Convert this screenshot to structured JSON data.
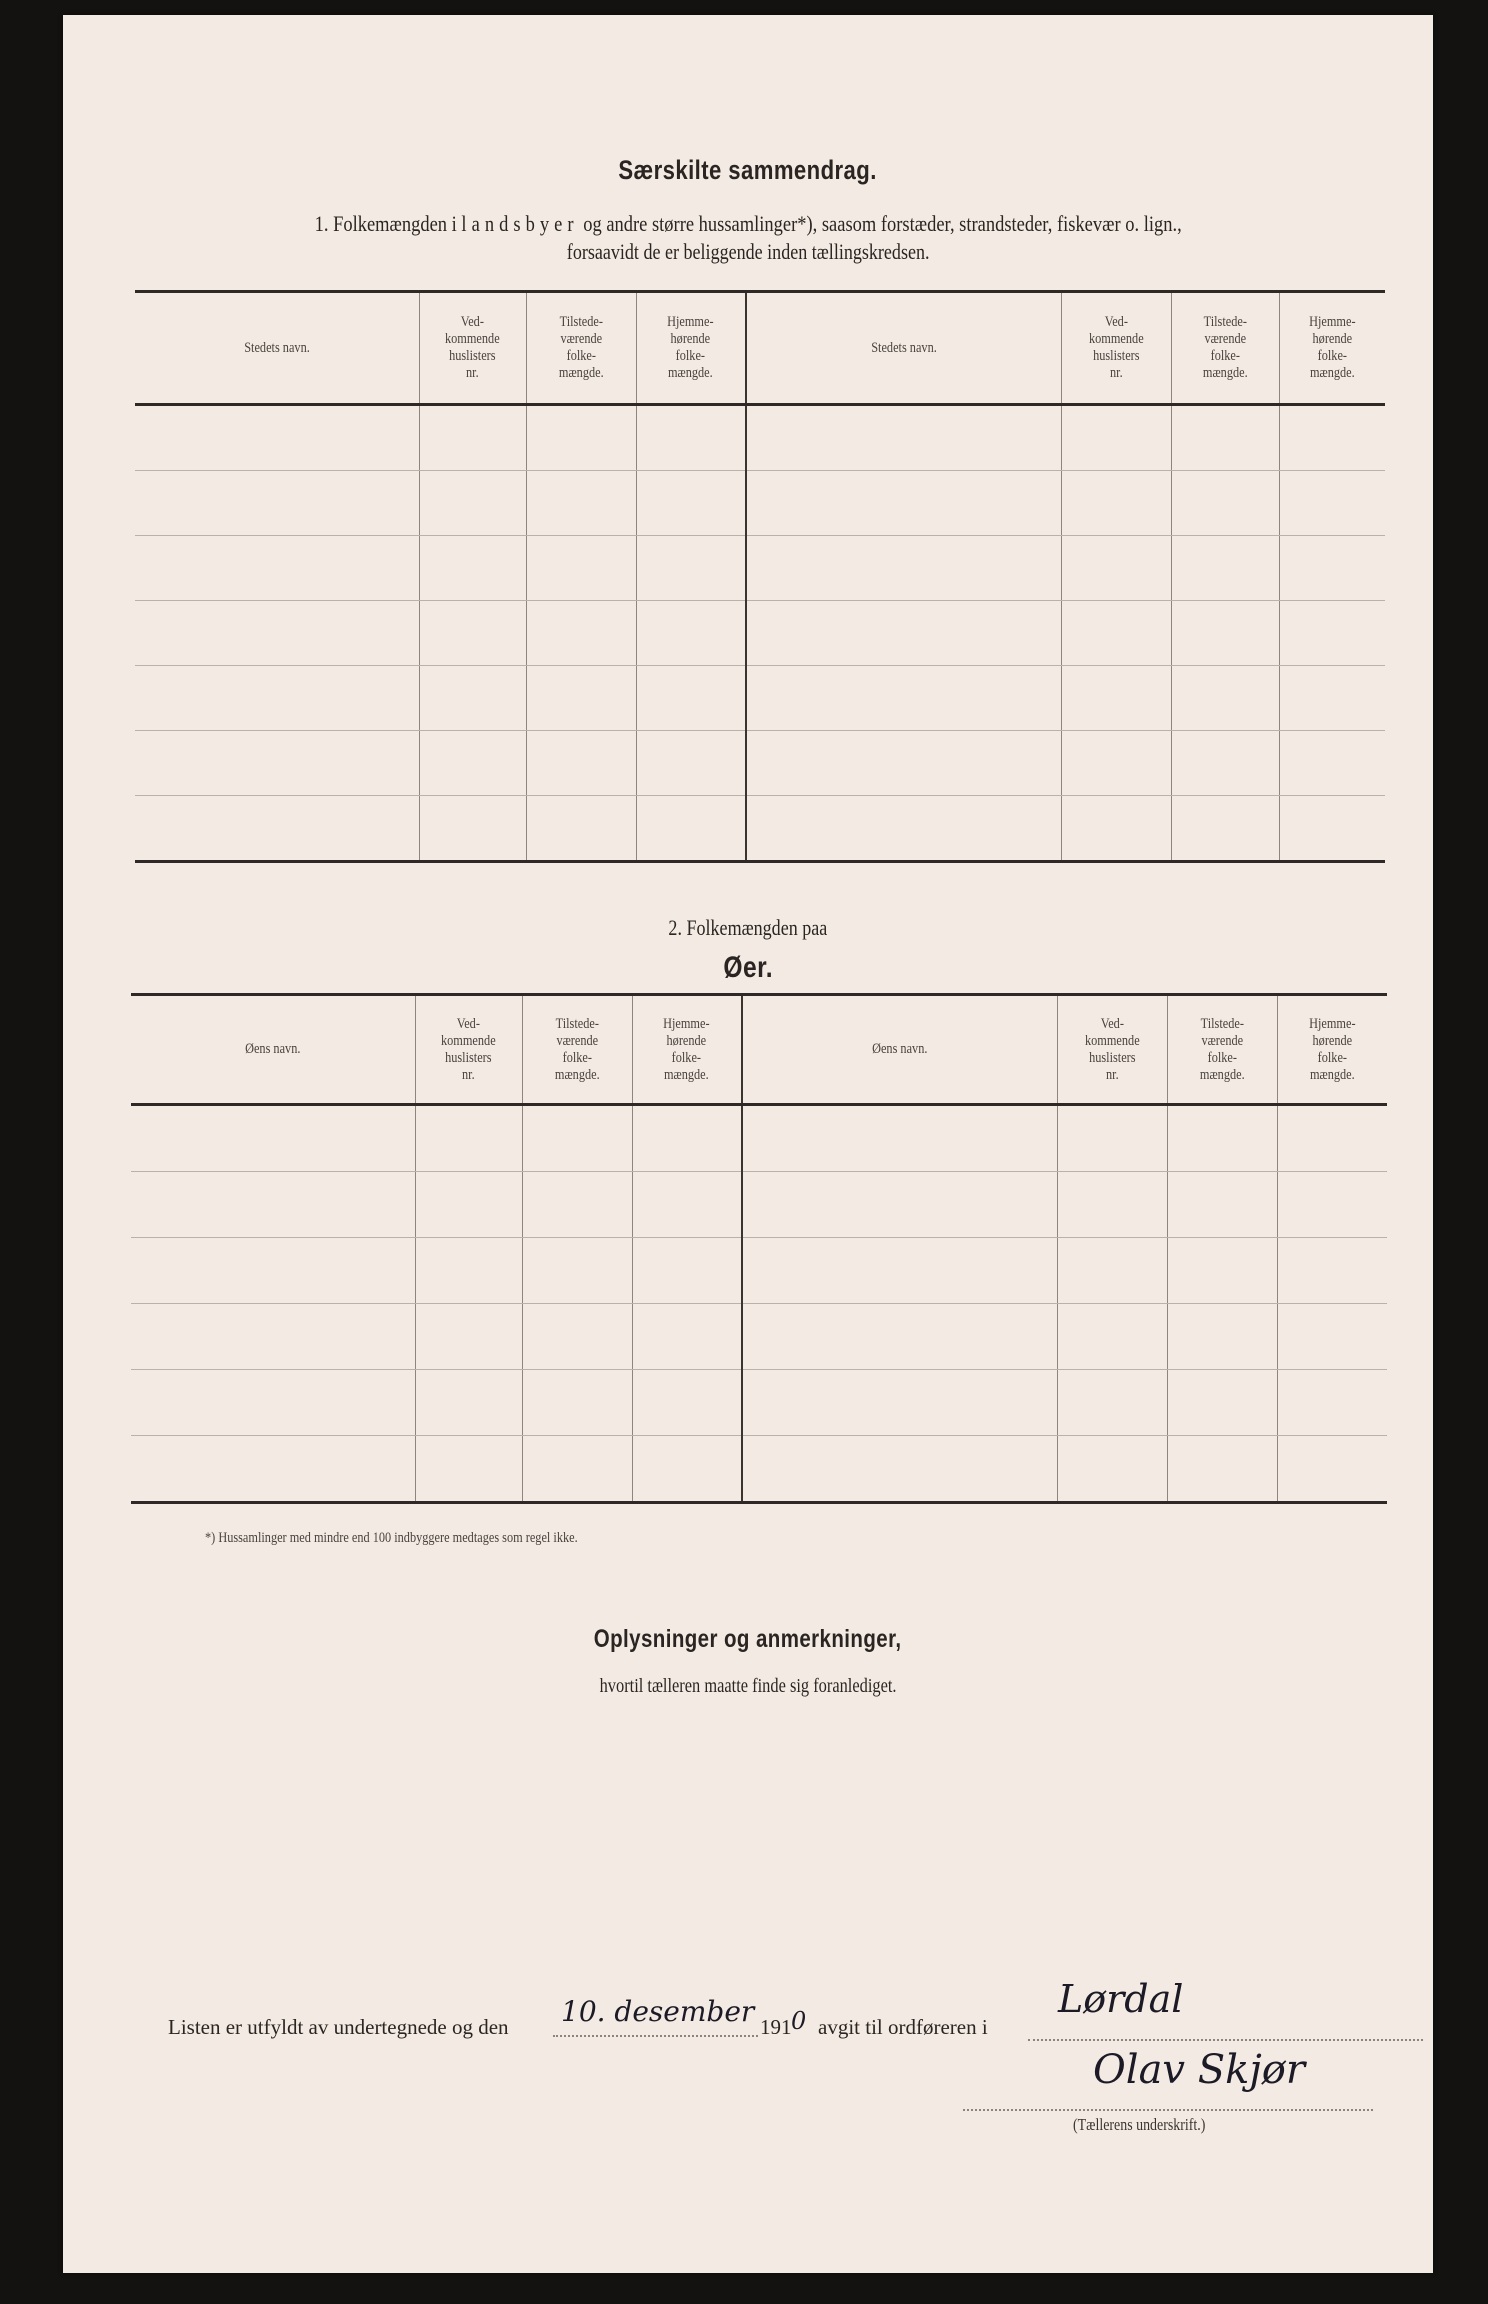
{
  "title": "Særskilte sammendrag.",
  "section1": {
    "heading_prefix": "1.  Folkemængden i",
    "heading_spaced": "landsbyer",
    "heading_suffix": "og andre større hussamlinger*), saasom forstæder, strandsteder, fiskevær o. lign.,",
    "heading_line2": "forsaavidt de er beliggende inden tællingskredsen.",
    "columns": [
      "Stedets navn.",
      "Ved-\nkommende\nhuslisters\nnr.",
      "Tilstede-\nværende\nfolke-\nmængde.",
      "Hjemme-\nhørende\nfolke-\nmængde.",
      "Stedets navn.",
      "Ved-\nkommende\nhuslisters\nnr.",
      "Tilstede-\nværende\nfolke-\nmængde.",
      "Hjemme-\nhørende\nfolke-\nmængde."
    ],
    "rows": 7
  },
  "section2": {
    "heading_line1": "2.  Folkemængden paa",
    "heading_line2": "Øer.",
    "columns": [
      "Øens navn.",
      "Ved-\nkommende\nhuslisters\nnr.",
      "Tilstede-\nværende\nfolke-\nmængde.",
      "Hjemme-\nhørende\nfolke-\nmængde.",
      "Øens navn.",
      "Ved-\nkommende\nhuslisters\nnr.",
      "Tilstede-\nværende\nfolke-\nmængde.",
      "Hjemme-\nhørende\nfolke-\nmængde."
    ],
    "rows": 6
  },
  "footnote": "*)  Hussamlinger med mindre end 100 indbyggere medtages som regel ikke.",
  "remarks": {
    "title": "Oplysninger og anmerkninger,",
    "subtitle": "hvortil tælleren maatte finde sig foranlediget."
  },
  "signoff": {
    "text1": "Listen er utfyldt av undertegnede og den",
    "date_handwritten": "10. desember",
    "year_printed": "191",
    "year_handwritten": "0",
    "text2": "avgit til ordføreren i",
    "place_handwritten": "Lørdal",
    "signature": "Olav Skjør",
    "signature_label": "(Tællerens underskrift.)"
  }
}
